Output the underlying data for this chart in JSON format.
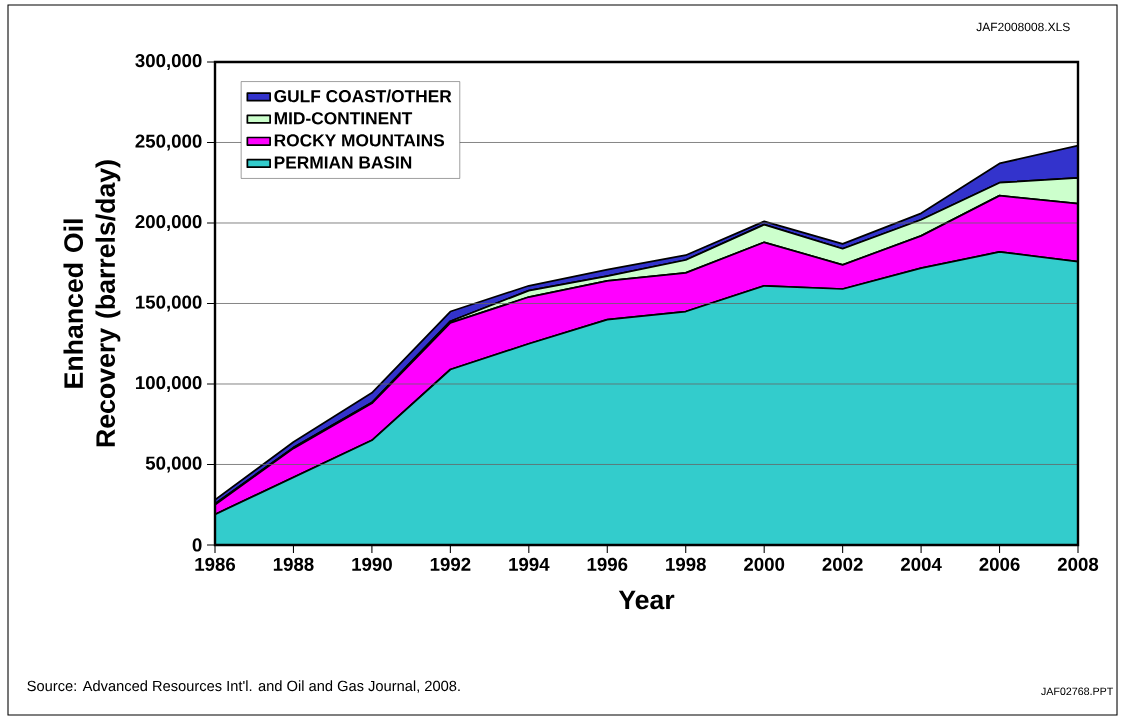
{
  "chart_data": {
    "type": "area",
    "stacked": true,
    "xlabel": "Year",
    "ylabel": "Enhanced Oil Recovery (barrels/day)",
    "x": [
      1986,
      1988,
      1990,
      1992,
      1994,
      1996,
      1998,
      2000,
      2002,
      2004,
      2006,
      2008
    ],
    "series": [
      {
        "name": "PERMIAN BASIN",
        "color": "#33cccc",
        "values": [
          19000,
          42000,
          65000,
          109000,
          125000,
          140000,
          145000,
          161000,
          159000,
          172000,
          182000,
          176000
        ]
      },
      {
        "name": "ROCKY MOUNTAINS",
        "color": "#ff00ff",
        "values": [
          6000,
          18000,
          23000,
          29000,
          29000,
          24000,
          24000,
          27000,
          15000,
          20000,
          35000,
          36000
        ]
      },
      {
        "name": "MID-CONTINENT",
        "color": "#ccffcc",
        "values": [
          500,
          500,
          500,
          1000,
          4000,
          3000,
          8000,
          11000,
          10000,
          10000,
          8000,
          16000
        ]
      },
      {
        "name": "GULF COAST/OTHER",
        "color": "#3333cc",
        "values": [
          2500,
          3500,
          6000,
          6000,
          3000,
          4000,
          3000,
          2000,
          3000,
          4000,
          12000,
          20000
        ]
      }
    ],
    "xlim": [
      1986,
      2008
    ],
    "xticks": [
      1986,
      1988,
      1990,
      1992,
      1994,
      1996,
      1998,
      2000,
      2002,
      2004,
      2006,
      2008
    ],
    "ylim": [
      0,
      300000
    ],
    "yticks": [
      {
        "value": 0,
        "label": "0"
      },
      {
        "value": 50000,
        "label": "50,000"
      },
      {
        "value": 100000,
        "label": "100,000"
      },
      {
        "value": 150000,
        "label": "150,000"
      },
      {
        "value": 200000,
        "label": "200,000"
      },
      {
        "value": 250000,
        "label": "250,000"
      },
      {
        "value": 300000,
        "label": "300,000"
      }
    ],
    "grid": "y",
    "legend": "top left",
    "annotations": [
      "JAF2008008.XLS",
      "Source: Advanced Resources Int'l. and Oil and Gas Journal, 2008.",
      "JAF02768.PPT"
    ]
  }
}
